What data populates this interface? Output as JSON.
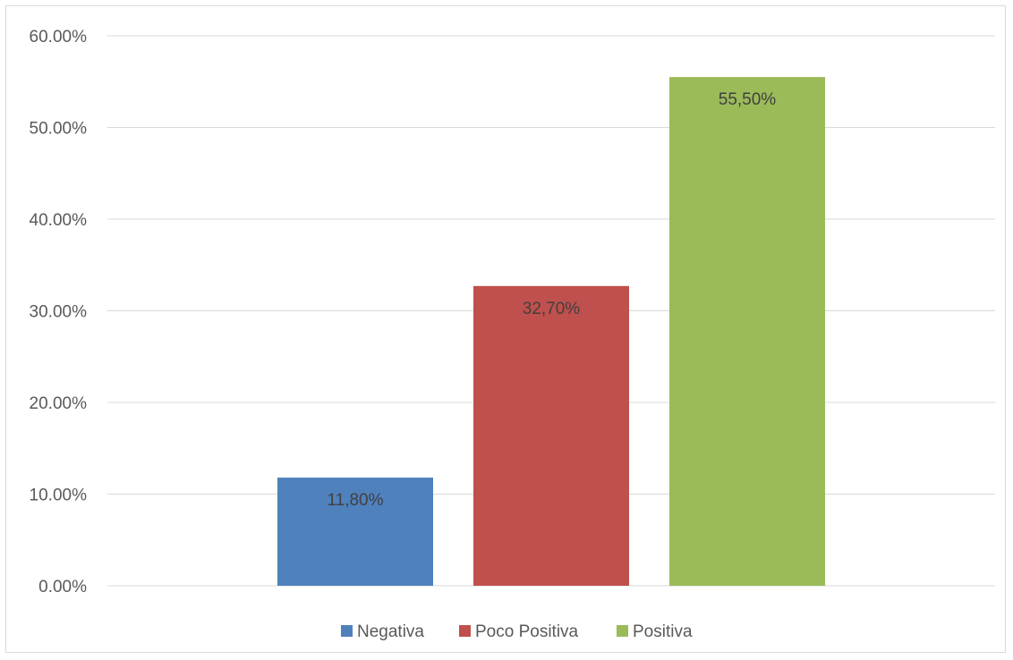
{
  "chart_data": {
    "type": "bar",
    "title": "",
    "xlabel": "",
    "ylabel": "",
    "categories": [
      "Negativa",
      "Poco Positiva",
      "Positiva"
    ],
    "values": [
      0.118,
      0.327,
      0.555
    ],
    "data_labels": [
      "11,80%",
      "32,70%",
      "55,50%"
    ],
    "colors": [
      "#4f81bd",
      "#c0504d",
      "#9bbb59"
    ],
    "ylim": [
      0,
      0.6
    ],
    "yticks": [
      0,
      0.1,
      0.2,
      0.3,
      0.4,
      0.5,
      0.6
    ],
    "ytick_labels": [
      "0.00%",
      "10.00%",
      "20.00%",
      "30.00%",
      "40.00%",
      "50.00%",
      "60.00%"
    ],
    "grid": true,
    "legend": {
      "position": "bottom",
      "entries": [
        "Negativa",
        "Poco Positiva",
        "Positiva"
      ]
    }
  }
}
